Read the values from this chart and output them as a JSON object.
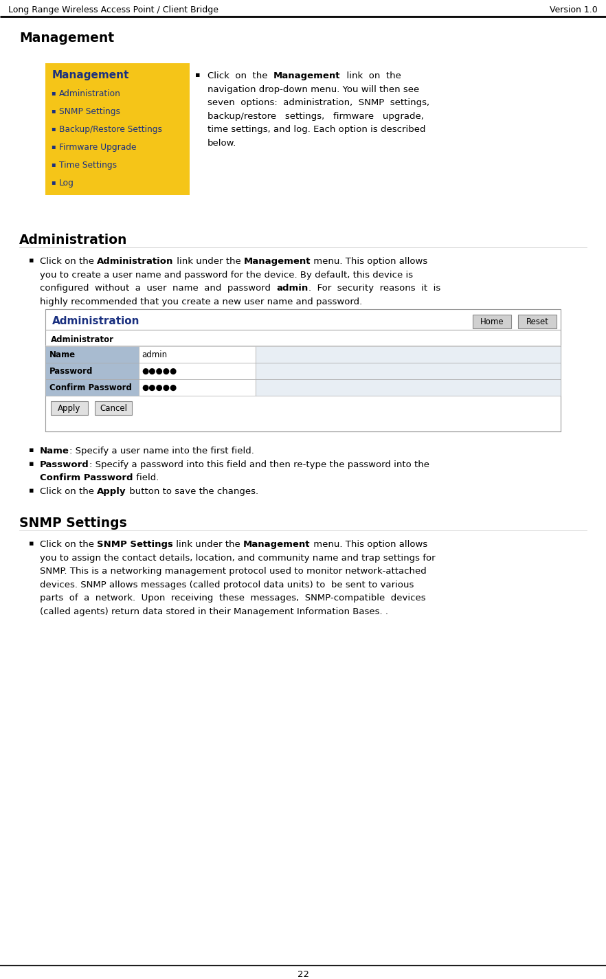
{
  "page_title_left": "Long Range Wireless Access Point / Client Bridge",
  "page_title_right": "Version 1.0",
  "page_number": "22",
  "bg_color": "#ffffff",
  "section1_title": "Management",
  "menu_bg_color": "#F5C518",
  "menu_title": "Management",
  "menu_title_color": "#1a3080",
  "menu_items": [
    "Administration",
    "SNMP Settings",
    "Backup/Restore Settings",
    "Firmware Upgrade",
    "Time Settings",
    "Log"
  ],
  "menu_item_color": "#1a3080",
  "section2_title": "Administration",
  "admin_ui_title": "Administration",
  "admin_ui_title_color": "#1a3080",
  "admin_ui_btn1": "Home",
  "admin_ui_btn2": "Reset",
  "admin_ui_section": "Administrator",
  "admin_ui_rows": [
    {
      "label": "Name",
      "value": "admin"
    },
    {
      "label": "Password",
      "value": "●●●●●"
    },
    {
      "label": "Confirm Password",
      "value": "●●●●●"
    }
  ],
  "admin_ui_row_label_bg": "#a8bbd0",
  "admin_ui_apply_btn": "Apply",
  "admin_ui_cancel_btn": "Cancel",
  "section3_title": "SNMP Settings"
}
